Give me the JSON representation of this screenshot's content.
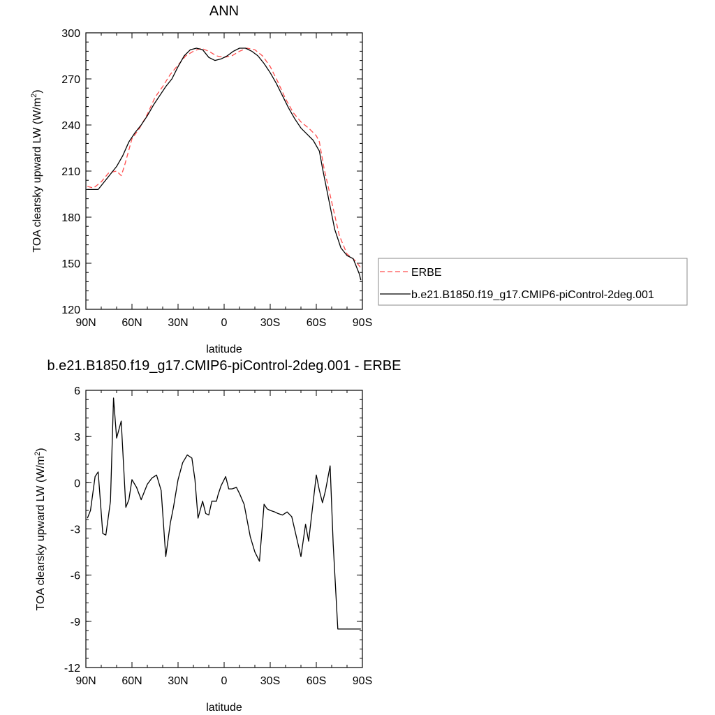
{
  "chart_data": [
    {
      "type": "line",
      "title": "ANN",
      "xlabel": "latitude",
      "ylabel": "TOA clearsky upward LW (W/m",
      "ylabel_sup": "2",
      "ylabel_tail": ")",
      "xlim": [
        -90,
        90
      ],
      "ylim": [
        120,
        300
      ],
      "x_ticks": [
        -90,
        -60,
        -30,
        0,
        30,
        60,
        90
      ],
      "x_tick_labels": [
        "90N",
        "60N",
        "30N",
        "0",
        "30S",
        "60S",
        "90S"
      ],
      "y_ticks": [
        120,
        150,
        180,
        210,
        240,
        270,
        300
      ],
      "y_tick_labels": [
        "120",
        "150",
        "180",
        "210",
        "240",
        "270",
        "300"
      ],
      "legend": {
        "position": "right",
        "entries": [
          "ERBE",
          "b.e21.B1850.f19_g17.CMIP6-piControl-2deg.001"
        ]
      },
      "series": [
        {
          "name": "ERBE",
          "color": "#ff4d4d",
          "dash": "dashed",
          "x": [
            -89,
            -85,
            -80,
            -75,
            -70,
            -67,
            -65,
            -60,
            -55,
            -50,
            -45,
            -40,
            -35,
            -30,
            -25,
            -20,
            -15,
            -10,
            -5,
            0,
            5,
            10,
            15,
            20,
            25,
            30,
            35,
            40,
            45,
            50,
            55,
            60,
            62,
            65,
            70,
            75,
            80,
            85,
            89
          ],
          "y": [
            200,
            199,
            203,
            209,
            210,
            207,
            213,
            231,
            238,
            247,
            258,
            265,
            273,
            279,
            285,
            288,
            290,
            288,
            285,
            284,
            285,
            288,
            290,
            289,
            285,
            278,
            268,
            257,
            248,
            242,
            238,
            233,
            229,
            212,
            190,
            168,
            156,
            152,
            147
          ],
          "x_end": 89,
          "y_end": 147
        },
        {
          "name": "b.e21.B1850.f19_g17.CMIP6-piControl-2deg.001",
          "color": "#000000",
          "dash": "solid",
          "x": [
            -89,
            -85,
            -82,
            -78,
            -74,
            -70,
            -66,
            -62,
            -58,
            -54,
            -50,
            -46,
            -42,
            -38,
            -34,
            -30,
            -26,
            -22,
            -18,
            -14,
            -10,
            -6,
            -2,
            2,
            6,
            10,
            14,
            18,
            22,
            26,
            30,
            34,
            38,
            42,
            46,
            50,
            54,
            58,
            62,
            64,
            68,
            72,
            76,
            80,
            84,
            86,
            88,
            89
          ],
          "y": [
            198,
            198,
            198,
            203,
            208,
            213,
            220,
            229,
            235,
            240,
            246,
            253,
            259,
            265,
            270,
            278,
            285,
            289,
            290,
            289,
            284,
            282,
            283,
            285,
            288,
            290,
            290,
            288,
            285,
            280,
            274,
            267,
            259,
            251,
            244,
            238,
            234,
            230,
            223,
            212,
            192,
            172,
            160,
            155,
            153,
            148,
            143,
            139
          ]
        }
      ]
    },
    {
      "type": "line",
      "title": "b.e21.B1850.f19_g17.CMIP6-piControl-2deg.001 - ERBE",
      "xlabel": "latitude",
      "ylabel": "TOA clearsky upward LW (W/m",
      "ylabel_sup": "2",
      "ylabel_tail": ")",
      "xlim": [
        -90,
        90
      ],
      "ylim": [
        -12,
        6
      ],
      "x_ticks": [
        -90,
        -60,
        -30,
        0,
        30,
        60,
        90
      ],
      "x_tick_labels": [
        "90N",
        "60N",
        "30N",
        "0",
        "30S",
        "60S",
        "90S"
      ],
      "y_ticks": [
        -12,
        -9,
        -6,
        -3,
        0,
        3,
        6
      ],
      "y_tick_labels": [
        "-12",
        "-9",
        "-6",
        "-3",
        "0",
        "3",
        "6"
      ],
      "series": [
        {
          "name": "b.e21.B1850.f19_g17.CMIP6-piControl-2deg.001 - ERBE",
          "color": "#000000",
          "dash": "solid",
          "x": [
            -89,
            -87,
            -84,
            -82,
            -79,
            -77,
            -74,
            -72,
            -70,
            -67,
            -64,
            -62,
            -60,
            -57,
            -54,
            -50,
            -47,
            -44,
            -41,
            -38,
            -35,
            -33,
            -30,
            -27,
            -24,
            -21,
            -19,
            -17,
            -14,
            -12,
            -10,
            -8,
            -5,
            -4,
            -2,
            1,
            3,
            5,
            8,
            10,
            13,
            17,
            20,
            23,
            26,
            28,
            30,
            33,
            35,
            38,
            41,
            44,
            47,
            50,
            53,
            55,
            60,
            62,
            64,
            66,
            69,
            71,
            74,
            77,
            79,
            82,
            86,
            89
          ],
          "y": [
            -2.3,
            -1.8,
            0.4,
            0.7,
            -3.3,
            -3.4,
            -1.2,
            5.5,
            2.9,
            4.0,
            -1.6,
            -1.1,
            0.2,
            -0.3,
            -1.1,
            -0.1,
            0.3,
            0.5,
            -0.5,
            -4.8,
            -2.6,
            -1.6,
            0.2,
            1.3,
            1.8,
            1.6,
            0.2,
            -2.3,
            -1.2,
            -2.0,
            -2.1,
            -1.2,
            -1.2,
            -0.8,
            -0.2,
            0.4,
            -0.4,
            -0.4,
            -0.3,
            -0.7,
            -1.4,
            -3.5,
            -4.5,
            -5.1,
            -1.4,
            -1.7,
            -1.8,
            -1.9,
            -2.0,
            -2.1,
            -1.9,
            -2.2,
            -3.5,
            -4.8,
            -2.7,
            -3.8,
            0.5,
            -0.5,
            -1.3,
            -0.5,
            1.1,
            -4.0,
            -9.5,
            -9.5,
            -9.5,
            -9.5,
            -9.5,
            -9.5
          ]
        }
      ]
    }
  ]
}
